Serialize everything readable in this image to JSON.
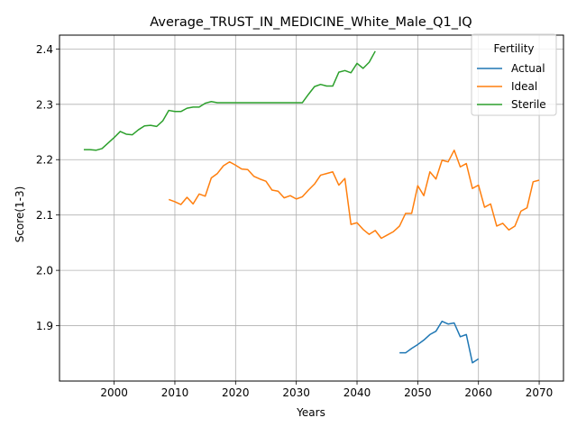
{
  "chart_data": {
    "type": "line",
    "title": "Average_TRUST_IN_MEDICINE_White_Male_Q1_IQ",
    "xlabel": "Years",
    "ylabel": "Score(1-3)",
    "xlim": [
      1991,
      2074
    ],
    "ylim": [
      1.8,
      2.425
    ],
    "xticks": [
      2000,
      2010,
      2020,
      2030,
      2040,
      2050,
      2060,
      2070
    ],
    "yticks": [
      1.9,
      2.0,
      2.1,
      2.2,
      2.3,
      2.4
    ],
    "ytick_labels": [
      "1.9",
      "2.0",
      "2.1",
      "2.2",
      "2.3",
      "2.4"
    ],
    "grid": true,
    "legend": {
      "title": "Fertility",
      "position": "top-right"
    },
    "series": [
      {
        "name": "Actual",
        "color": "#1f77b4",
        "x": [
          2047,
          2048,
          2049,
          2050,
          2051,
          2052,
          2053,
          2054,
          2055,
          2056,
          2057,
          2058,
          2059,
          2060
        ],
        "y": [
          1.851,
          1.851,
          1.859,
          1.866,
          1.874,
          1.884,
          1.89,
          1.908,
          1.903,
          1.905,
          1.88,
          1.884,
          1.833,
          1.84
        ]
      },
      {
        "name": "Ideal",
        "color": "#ff7f0e",
        "x": [
          2009,
          2010,
          2011,
          2012,
          2013,
          2014,
          2015,
          2016,
          2017,
          2018,
          2019,
          2020,
          2021,
          2022,
          2023,
          2024,
          2025,
          2026,
          2027,
          2028,
          2029,
          2030,
          2031,
          2032,
          2033,
          2034,
          2035,
          2036,
          2037,
          2038,
          2039,
          2040,
          2041,
          2042,
          2043,
          2044,
          2045,
          2046,
          2047,
          2048,
          2049,
          2050,
          2051,
          2052,
          2053,
          2054,
          2055,
          2056,
          2057,
          2058,
          2059,
          2060,
          2061,
          2062,
          2063,
          2064,
          2065,
          2066,
          2067,
          2068,
          2069,
          2070
        ],
        "y": [
          2.128,
          2.124,
          2.119,
          2.132,
          2.12,
          2.138,
          2.134,
          2.167,
          2.175,
          2.189,
          2.196,
          2.19,
          2.183,
          2.182,
          2.17,
          2.165,
          2.161,
          2.145,
          2.143,
          2.131,
          2.135,
          2.129,
          2.133,
          2.145,
          2.156,
          2.172,
          2.175,
          2.178,
          2.154,
          2.166,
          2.083,
          2.086,
          2.074,
          2.065,
          2.072,
          2.058,
          2.064,
          2.07,
          2.08,
          2.103,
          2.103,
          2.153,
          2.135,
          2.178,
          2.165,
          2.199,
          2.196,
          2.217,
          2.187,
          2.193,
          2.148,
          2.154,
          2.114,
          2.12,
          2.08,
          2.085,
          2.073,
          2.08,
          2.107,
          2.113,
          2.16,
          2.163
        ]
      },
      {
        "name": "Sterile",
        "color": "#2ca02c",
        "x": [
          1995,
          1996,
          1997,
          1998,
          1999,
          2000,
          2001,
          2002,
          2003,
          2004,
          2005,
          2006,
          2007,
          2008,
          2009,
          2010,
          2011,
          2012,
          2013,
          2014,
          2015,
          2016,
          2017,
          2018,
          2019,
          2020,
          2021,
          2022,
          2023,
          2024,
          2025,
          2026,
          2027,
          2028,
          2029,
          2030,
          2031,
          2032,
          2033,
          2034,
          2035,
          2036,
          2037,
          2038,
          2039,
          2040,
          2041,
          2042,
          2043
        ],
        "y": [
          2.218,
          2.218,
          2.217,
          2.22,
          2.23,
          2.24,
          2.251,
          2.246,
          2.245,
          2.254,
          2.261,
          2.262,
          2.26,
          2.27,
          2.289,
          2.287,
          2.287,
          2.293,
          2.295,
          2.295,
          2.302,
          2.305,
          2.303,
          2.303,
          2.303,
          2.303,
          2.303,
          2.303,
          2.303,
          2.303,
          2.303,
          2.303,
          2.303,
          2.303,
          2.303,
          2.303,
          2.303,
          2.318,
          2.332,
          2.336,
          2.333,
          2.333,
          2.358,
          2.361,
          2.357,
          2.374,
          2.365,
          2.376,
          2.396
        ]
      }
    ]
  }
}
